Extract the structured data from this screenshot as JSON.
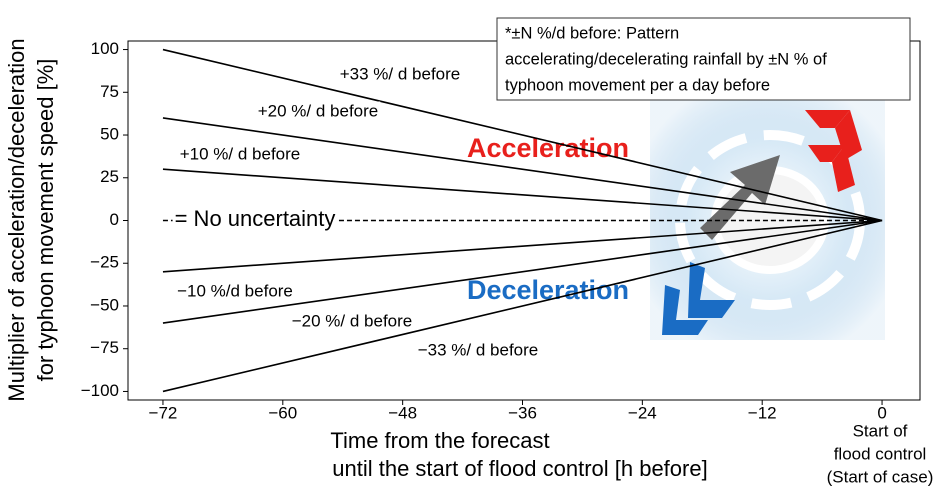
{
  "chart_data": {
    "type": "line",
    "x": [
      -72,
      0
    ],
    "xlim": [
      -75.5,
      3.8
    ],
    "ylim": [
      -105,
      105
    ],
    "xticks": [
      {
        "value": -72,
        "label": "−72"
      },
      {
        "value": -60,
        "label": "−60"
      },
      {
        "value": -48,
        "label": "−48"
      },
      {
        "value": -36,
        "label": "−36"
      },
      {
        "value": -24,
        "label": "−24"
      },
      {
        "value": -12,
        "label": "−12"
      },
      0
    ],
    "yticks": [
      100,
      75,
      50,
      25,
      0,
      {
        "value": -25,
        "label": "−25"
      },
      {
        "value": -50,
        "label": "−50"
      },
      {
        "value": -75,
        "label": "−75"
      },
      {
        "value": -100,
        "label": "−100"
      }
    ],
    "xlabel": [
      "Time from the forecast",
      "until the start of flood control [h before]"
    ],
    "ylabel": [
      "Multiplier of acceleration/deceleration",
      "for typhoon movement speed  [%]"
    ],
    "end_label": [
      "Start of",
      "flood control",
      "(Start of case)"
    ],
    "note": [
      "*±N %/d before: Pattern",
      "accelerating/decelerating rainfall by ±N % of",
      "typhoon movement per a day before"
    ],
    "annotations": [
      "Acceleration",
      "Deceleration"
    ],
    "series": [
      {
        "name": "+33 %/ d before",
        "color": "#000000",
        "style": "solid",
        "values": [
          100,
          0
        ]
      },
      {
        "name": "+20 %/ d before",
        "color": "#000000",
        "style": "solid",
        "values": [
          60,
          0
        ]
      },
      {
        "name": "+10 %/ d before",
        "color": "#000000",
        "style": "solid",
        "values": [
          30,
          0
        ]
      },
      {
        "name": "= No uncertainty",
        "color": "#000000",
        "style": "dashed",
        "values": [
          0,
          0
        ]
      },
      {
        "name": "−10 %/d before",
        "color": "#000000",
        "style": "solid",
        "values": [
          -30,
          0
        ]
      },
      {
        "name": "−20 %/ d before",
        "color": "#000000",
        "style": "solid",
        "values": [
          -60,
          0
        ]
      },
      {
        "name": "−33 %/ d before",
        "color": "#000000",
        "style": "solid",
        "values": [
          -100,
          0
        ]
      }
    ]
  }
}
